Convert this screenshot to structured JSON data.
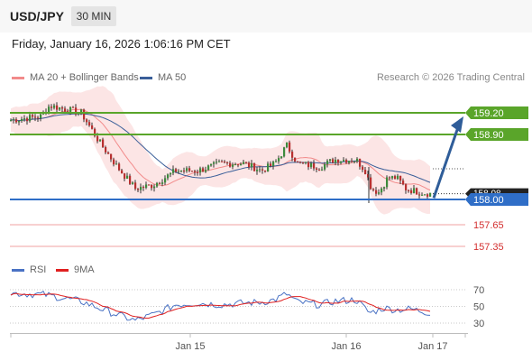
{
  "header": {
    "pair": "USD/JPY",
    "timeframe": "30 MIN"
  },
  "timestamp": "Friday, January 16, 2026 1:06:16 PM CET",
  "legend": {
    "ma20": "MA 20 + Bollinger Bands",
    "ma50": "MA 50",
    "rsi": "RSI",
    "rsi_ma": "9MA",
    "ma20_color": "#f28b8b",
    "ma50_color": "#3a5f99",
    "rsi_color": "#4a72c4",
    "rsi_ma_color": "#e02020"
  },
  "credit": "Research © 2026 Trading Central",
  "chart_data": {
    "type": "candlestick",
    "price_range": [
      157.2,
      159.5
    ],
    "x_ticks": [
      "Jan 15",
      "Jan 16",
      "Jan 17"
    ],
    "price_levels": [
      {
        "label": "159.20",
        "value": 159.2,
        "color": "#5aa52a",
        "style": "resistance"
      },
      {
        "label": "158.90",
        "value": 158.9,
        "color": "#5aa52a",
        "style": "resistance"
      },
      {
        "label": "158.00",
        "value": 158.0,
        "color": "#2f6ec7",
        "style": "pivot"
      },
      {
        "label": "157.65",
        "value": 157.65,
        "color": "#d32f2f",
        "style": "support"
      },
      {
        "label": "157.35",
        "value": 157.35,
        "color": "#d32f2f",
        "style": "support"
      }
    ],
    "current_price": {
      "label": "158.08",
      "value": 158.08
    },
    "forecast_target": 159.2,
    "rsi": {
      "range": [
        20,
        80
      ],
      "ticks": [
        "70",
        "50",
        "30"
      ]
    }
  }
}
